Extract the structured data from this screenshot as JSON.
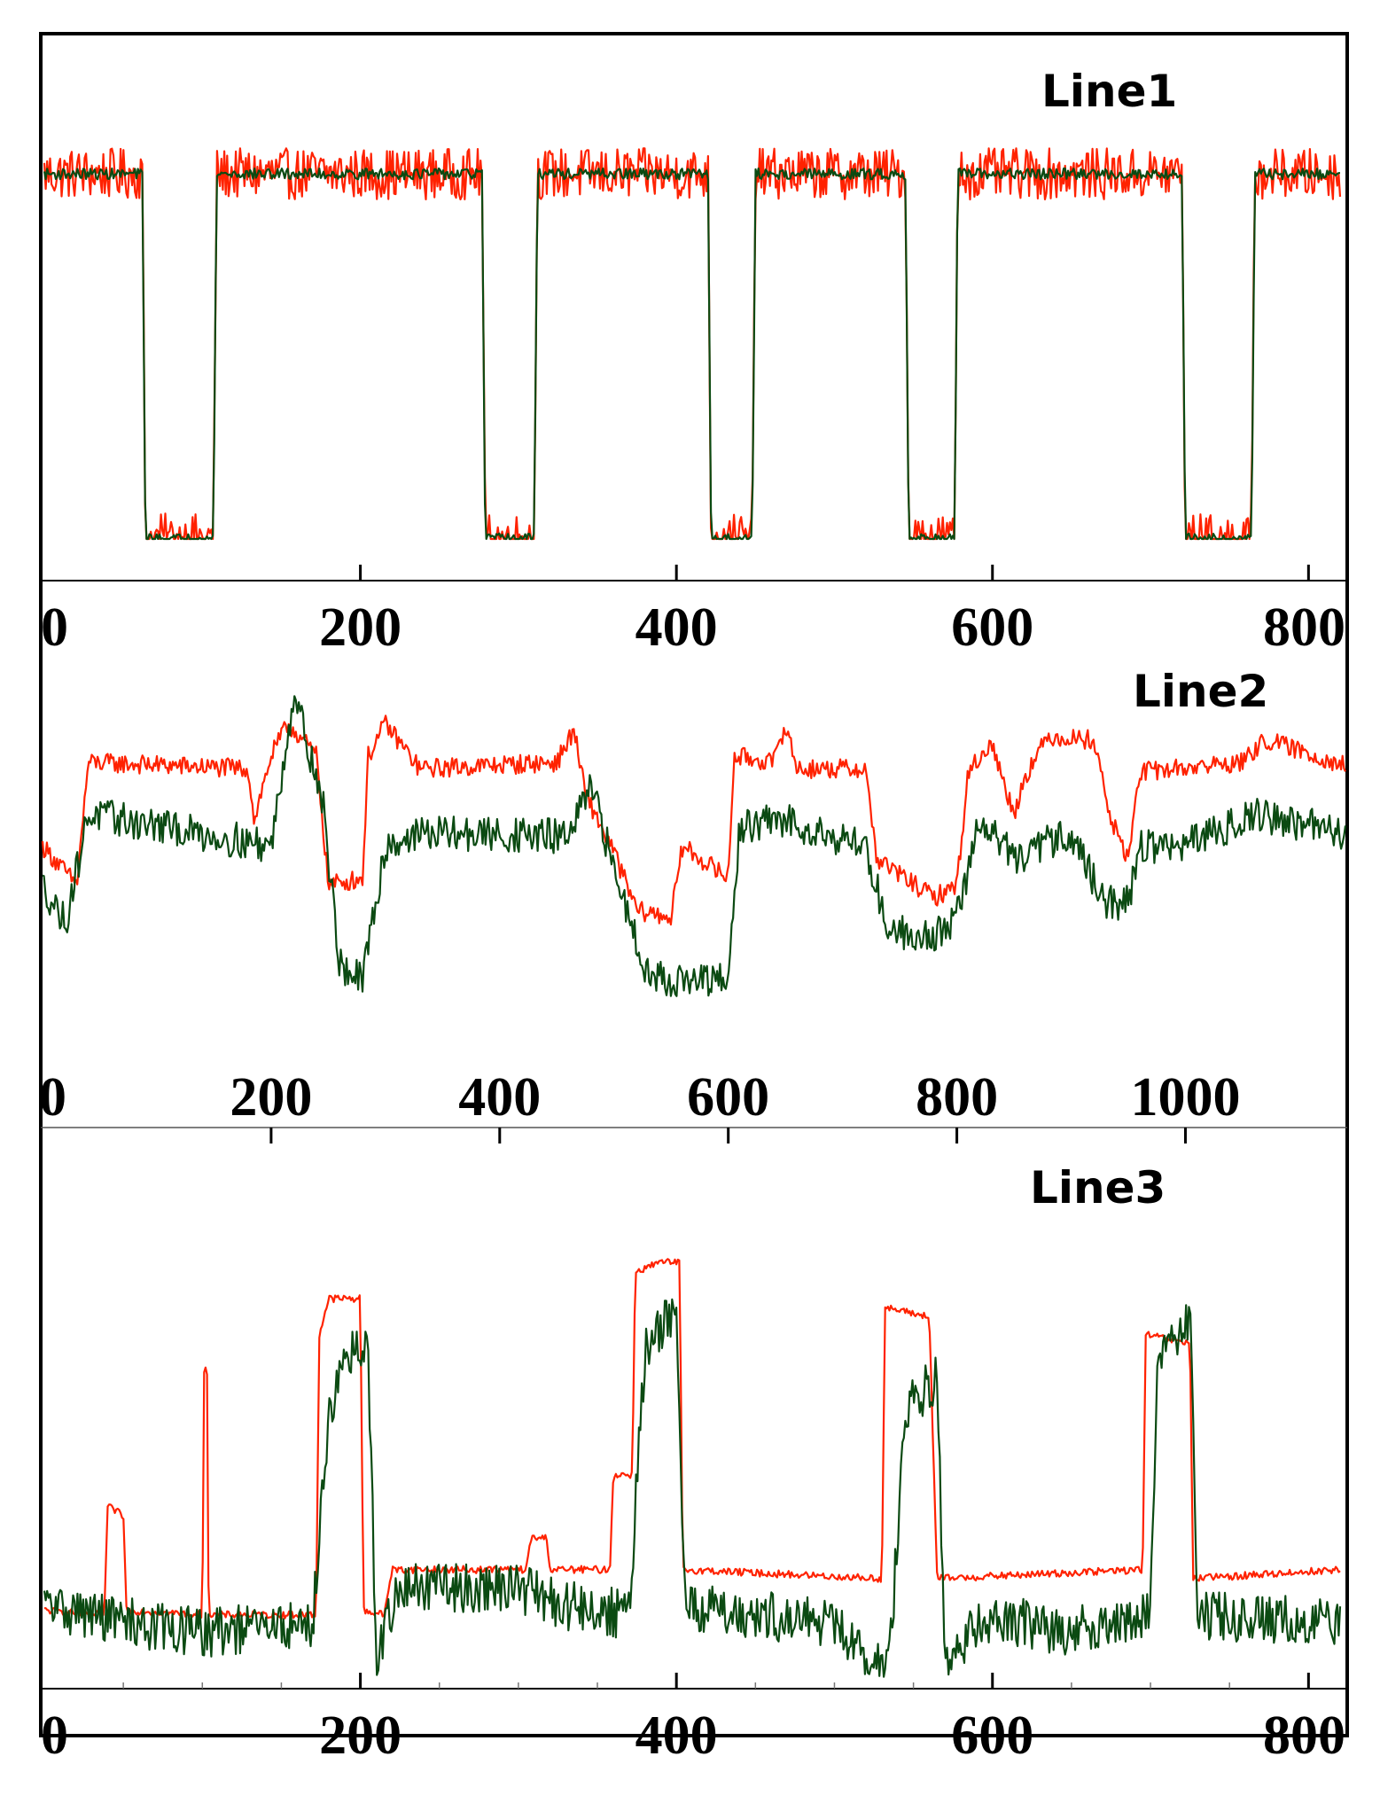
{
  "chart_data": [
    {
      "type": "line",
      "title": "Line1",
      "xlim": [
        0,
        820
      ],
      "ylim": [
        0,
        1.1
      ],
      "ticks": [
        0,
        200,
        400,
        600,
        800
      ],
      "tick_labels": [
        "0",
        "200",
        "400",
        "600",
        "800"
      ],
      "series": [
        {
          "name": "red",
          "color": "#ff2200",
          "keypoints": [
            [
              0,
              1.0
            ],
            [
              62,
              1.0
            ],
            [
              64,
              0.0
            ],
            [
              107,
              0.0
            ],
            [
              109,
              1.0
            ],
            [
              277,
              1.0
            ],
            [
              279,
              0.0
            ],
            [
              310,
              0.0
            ],
            [
              312,
              1.0
            ],
            [
              420,
              1.0
            ],
            [
              422,
              0.0
            ],
            [
              448,
              0.0
            ],
            [
              450,
              1.0
            ],
            [
              545,
              1.0
            ],
            [
              547,
              0.0
            ],
            [
              576,
              0.0
            ],
            [
              578,
              1.0
            ],
            [
              720,
              1.0
            ],
            [
              722,
              0.0
            ],
            [
              764,
              0.0
            ],
            [
              766,
              1.0
            ],
            [
              820,
              1.0
            ]
          ],
          "noise": 0.07
        },
        {
          "name": "green",
          "color": "#0b4a12",
          "keypoints": [
            [
              0,
              1.0
            ],
            [
              62,
              1.0
            ],
            [
              64,
              0.0
            ],
            [
              107,
              0.0
            ],
            [
              109,
              1.0
            ],
            [
              277,
              1.0
            ],
            [
              279,
              0.0
            ],
            [
              310,
              0.0
            ],
            [
              312,
              1.0
            ],
            [
              420,
              1.0
            ],
            [
              422,
              0.0
            ],
            [
              448,
              0.0
            ],
            [
              450,
              1.0
            ],
            [
              545,
              1.0
            ],
            [
              547,
              0.0
            ],
            [
              576,
              0.0
            ],
            [
              578,
              1.0
            ],
            [
              720,
              1.0
            ],
            [
              722,
              0.0
            ],
            [
              764,
              0.0
            ],
            [
              766,
              1.0
            ],
            [
              820,
              1.0
            ]
          ],
          "noise": 0.015
        }
      ]
    },
    {
      "type": "line",
      "title": "Line2",
      "xlim": [
        0,
        1140
      ],
      "ylim": [
        0,
        1.1
      ],
      "ticks": [
        0,
        200,
        400,
        600,
        800,
        1000
      ],
      "tick_labels": [
        "0",
        "200",
        "400",
        "600",
        "800",
        "1000"
      ],
      "series": [
        {
          "name": "red",
          "color": "#ff2200",
          "keypoints": [
            [
              0,
              0.62
            ],
            [
              30,
              0.5
            ],
            [
              40,
              0.88
            ],
            [
              180,
              0.86
            ],
            [
              185,
              0.7
            ],
            [
              200,
              0.9
            ],
            [
              215,
              1.0
            ],
            [
              240,
              0.9
            ],
            [
              250,
              0.5
            ],
            [
              280,
              0.52
            ],
            [
              285,
              0.9
            ],
            [
              300,
              1.0
            ],
            [
              330,
              0.86
            ],
            [
              450,
              0.88
            ],
            [
              465,
              0.98
            ],
            [
              475,
              0.78
            ],
            [
              500,
              0.6
            ],
            [
              520,
              0.42
            ],
            [
              550,
              0.4
            ],
            [
              560,
              0.62
            ],
            [
              600,
              0.52
            ],
            [
              605,
              0.9
            ],
            [
              640,
              0.88
            ],
            [
              650,
              1.0
            ],
            [
              660,
              0.86
            ],
            [
              720,
              0.86
            ],
            [
              730,
              0.58
            ],
            [
              780,
              0.46
            ],
            [
              800,
              0.5
            ],
            [
              810,
              0.85
            ],
            [
              830,
              0.94
            ],
            [
              850,
              0.72
            ],
            [
              860,
              0.84
            ],
            [
              880,
              0.96
            ],
            [
              920,
              0.95
            ],
            [
              935,
              0.7
            ],
            [
              950,
              0.58
            ],
            [
              960,
              0.85
            ],
            [
              1050,
              0.88
            ],
            [
              1070,
              0.95
            ],
            [
              1140,
              0.87
            ]
          ],
          "noise": 0.03
        },
        {
          "name": "green",
          "color": "#0b4a12",
          "keypoints": [
            [
              0,
              0.5
            ],
            [
              20,
              0.38
            ],
            [
              40,
              0.72
            ],
            [
              200,
              0.62
            ],
            [
              220,
              1.1
            ],
            [
              245,
              0.76
            ],
            [
              260,
              0.25
            ],
            [
              280,
              0.2
            ],
            [
              300,
              0.62
            ],
            [
              330,
              0.66
            ],
            [
              460,
              0.65
            ],
            [
              480,
              0.8
            ],
            [
              500,
              0.55
            ],
            [
              530,
              0.22
            ],
            [
              560,
              0.2
            ],
            [
              600,
              0.2
            ],
            [
              610,
              0.68
            ],
            [
              650,
              0.7
            ],
            [
              720,
              0.62
            ],
            [
              740,
              0.36
            ],
            [
              780,
              0.34
            ],
            [
              800,
              0.4
            ],
            [
              820,
              0.7
            ],
            [
              860,
              0.56
            ],
            [
              870,
              0.62
            ],
            [
              900,
              0.66
            ],
            [
              930,
              0.44
            ],
            [
              950,
              0.45
            ],
            [
              960,
              0.62
            ],
            [
              1000,
              0.62
            ],
            [
              1060,
              0.72
            ],
            [
              1140,
              0.66
            ]
          ],
          "noise": 0.055
        }
      ]
    },
    {
      "type": "line",
      "title": "Line3",
      "xlim": [
        0,
        820
      ],
      "ylim": [
        0,
        1.05
      ],
      "ticks": [
        0,
        200,
        400,
        600,
        800
      ],
      "tick_labels": [
        "0",
        "200",
        "400",
        "600",
        "800"
      ],
      "series": [
        {
          "name": "red",
          "color": "#ff2200",
          "keypoints": [
            [
              0,
              0.15
            ],
            [
              38,
              0.14
            ],
            [
              40,
              0.38
            ],
            [
              50,
              0.36
            ],
            [
              52,
              0.15
            ],
            [
              100,
              0.14
            ],
            [
              101,
              0.68
            ],
            [
              103,
              0.68
            ],
            [
              104,
              0.14
            ],
            [
              172,
              0.14
            ],
            [
              174,
              0.76
            ],
            [
              180,
              0.84
            ],
            [
              200,
              0.84
            ],
            [
              202,
              0.15
            ],
            [
              215,
              0.14
            ],
            [
              220,
              0.24
            ],
            [
              305,
              0.24
            ],
            [
              308,
              0.31
            ],
            [
              318,
              0.31
            ],
            [
              320,
              0.24
            ],
            [
              358,
              0.24
            ],
            [
              360,
              0.45
            ],
            [
              372,
              0.45
            ],
            [
              374,
              0.9
            ],
            [
              390,
              0.92
            ],
            [
              402,
              0.92
            ],
            [
              404,
              0.24
            ],
            [
              530,
              0.22
            ],
            [
              532,
              0.82
            ],
            [
              560,
              0.8
            ],
            [
              565,
              0.22
            ],
            [
              695,
              0.24
            ],
            [
              697,
              0.76
            ],
            [
              725,
              0.74
            ],
            [
              727,
              0.22
            ],
            [
              820,
              0.24
            ]
          ],
          "noise": 0.008
        },
        {
          "name": "green",
          "color": "#0b4a12",
          "keypoints": [
            [
              0,
              0.16
            ],
            [
              60,
              0.12
            ],
            [
              100,
              0.1
            ],
            [
              170,
              0.12
            ],
            [
              180,
              0.6
            ],
            [
              195,
              0.72
            ],
            [
              205,
              0.72
            ],
            [
              210,
              0.05
            ],
            [
              225,
              0.2
            ],
            [
              300,
              0.2
            ],
            [
              330,
              0.16
            ],
            [
              370,
              0.14
            ],
            [
              380,
              0.72
            ],
            [
              400,
              0.82
            ],
            [
              405,
              0.16
            ],
            [
              500,
              0.12
            ],
            [
              520,
              0.04
            ],
            [
              535,
              0.04
            ],
            [
              545,
              0.6
            ],
            [
              565,
              0.66
            ],
            [
              570,
              0.05
            ],
            [
              600,
              0.14
            ],
            [
              640,
              0.1
            ],
            [
              700,
              0.14
            ],
            [
              705,
              0.72
            ],
            [
              725,
              0.8
            ],
            [
              730,
              0.14
            ],
            [
              820,
              0.12
            ]
          ],
          "noise": 0.055
        }
      ]
    }
  ]
}
